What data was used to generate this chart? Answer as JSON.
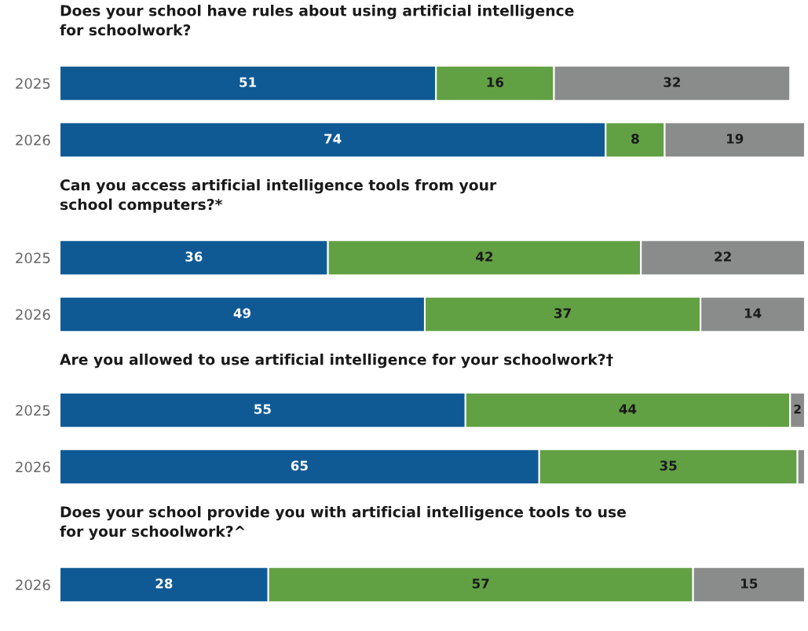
{
  "chart_data": [
    {
      "type": "bar",
      "orientation": "horizontal",
      "stacked": true,
      "title": "Does your school have rules about using artificial intelligence\nfor schoolwork?",
      "categories": [
        "2025",
        "2026"
      ],
      "series": [
        {
          "color": "#0f5a94",
          "values": [
            51,
            74
          ],
          "value_labels": [
            "51",
            "74"
          ]
        },
        {
          "color": "#62a044",
          "values": [
            16,
            8
          ],
          "value_labels": [
            "16",
            "8"
          ]
        },
        {
          "color": "#8a8c8c",
          "values": [
            32,
            19
          ],
          "value_labels": [
            "32",
            "19"
          ]
        }
      ],
      "legend": false,
      "grid": false
    },
    {
      "type": "bar",
      "orientation": "horizontal",
      "stacked": true,
      "title": "Can you access artificial intelligence tools from your\nschool computers?*",
      "categories": [
        "2025",
        "2026"
      ],
      "series": [
        {
          "color": "#0f5a94",
          "values": [
            36,
            49
          ],
          "value_labels": [
            "36",
            "49"
          ]
        },
        {
          "color": "#62a044",
          "values": [
            42,
            37
          ],
          "value_labels": [
            "42",
            "37"
          ]
        },
        {
          "color": "#8a8c8c",
          "values": [
            22,
            14
          ],
          "value_labels": [
            "22",
            "14"
          ]
        }
      ],
      "legend": false,
      "grid": false
    },
    {
      "type": "bar",
      "orientation": "horizontal",
      "stacked": true,
      "title": "Are you allowed to use artificial intelligence for your schoolwork?†",
      "categories": [
        "2025",
        "2026"
      ],
      "series": [
        {
          "color": "#0f5a94",
          "values": [
            55,
            65
          ],
          "value_labels": [
            "55",
            "65"
          ]
        },
        {
          "color": "#62a044",
          "values": [
            44,
            35
          ],
          "value_labels": [
            "44",
            "35"
          ]
        },
        {
          "color": "#8a8c8c",
          "values": [
            2,
            1
          ],
          "value_labels": [
            "2",
            null
          ]
        }
      ],
      "legend": false,
      "grid": false
    },
    {
      "type": "bar",
      "orientation": "horizontal",
      "stacked": true,
      "title": "Does your school provide you with artificial intelligence tools to use\nfor your schoolwork?^",
      "categories": [
        "2026"
      ],
      "series": [
        {
          "color": "#0f5a94",
          "values": [
            28
          ],
          "value_labels": [
            "28"
          ]
        },
        {
          "color": "#62a044",
          "values": [
            57
          ],
          "value_labels": [
            "57"
          ]
        },
        {
          "color": "#8a8c8c",
          "values": [
            15
          ],
          "value_labels": [
            "15"
          ]
        }
      ],
      "legend": false,
      "grid": false
    }
  ]
}
